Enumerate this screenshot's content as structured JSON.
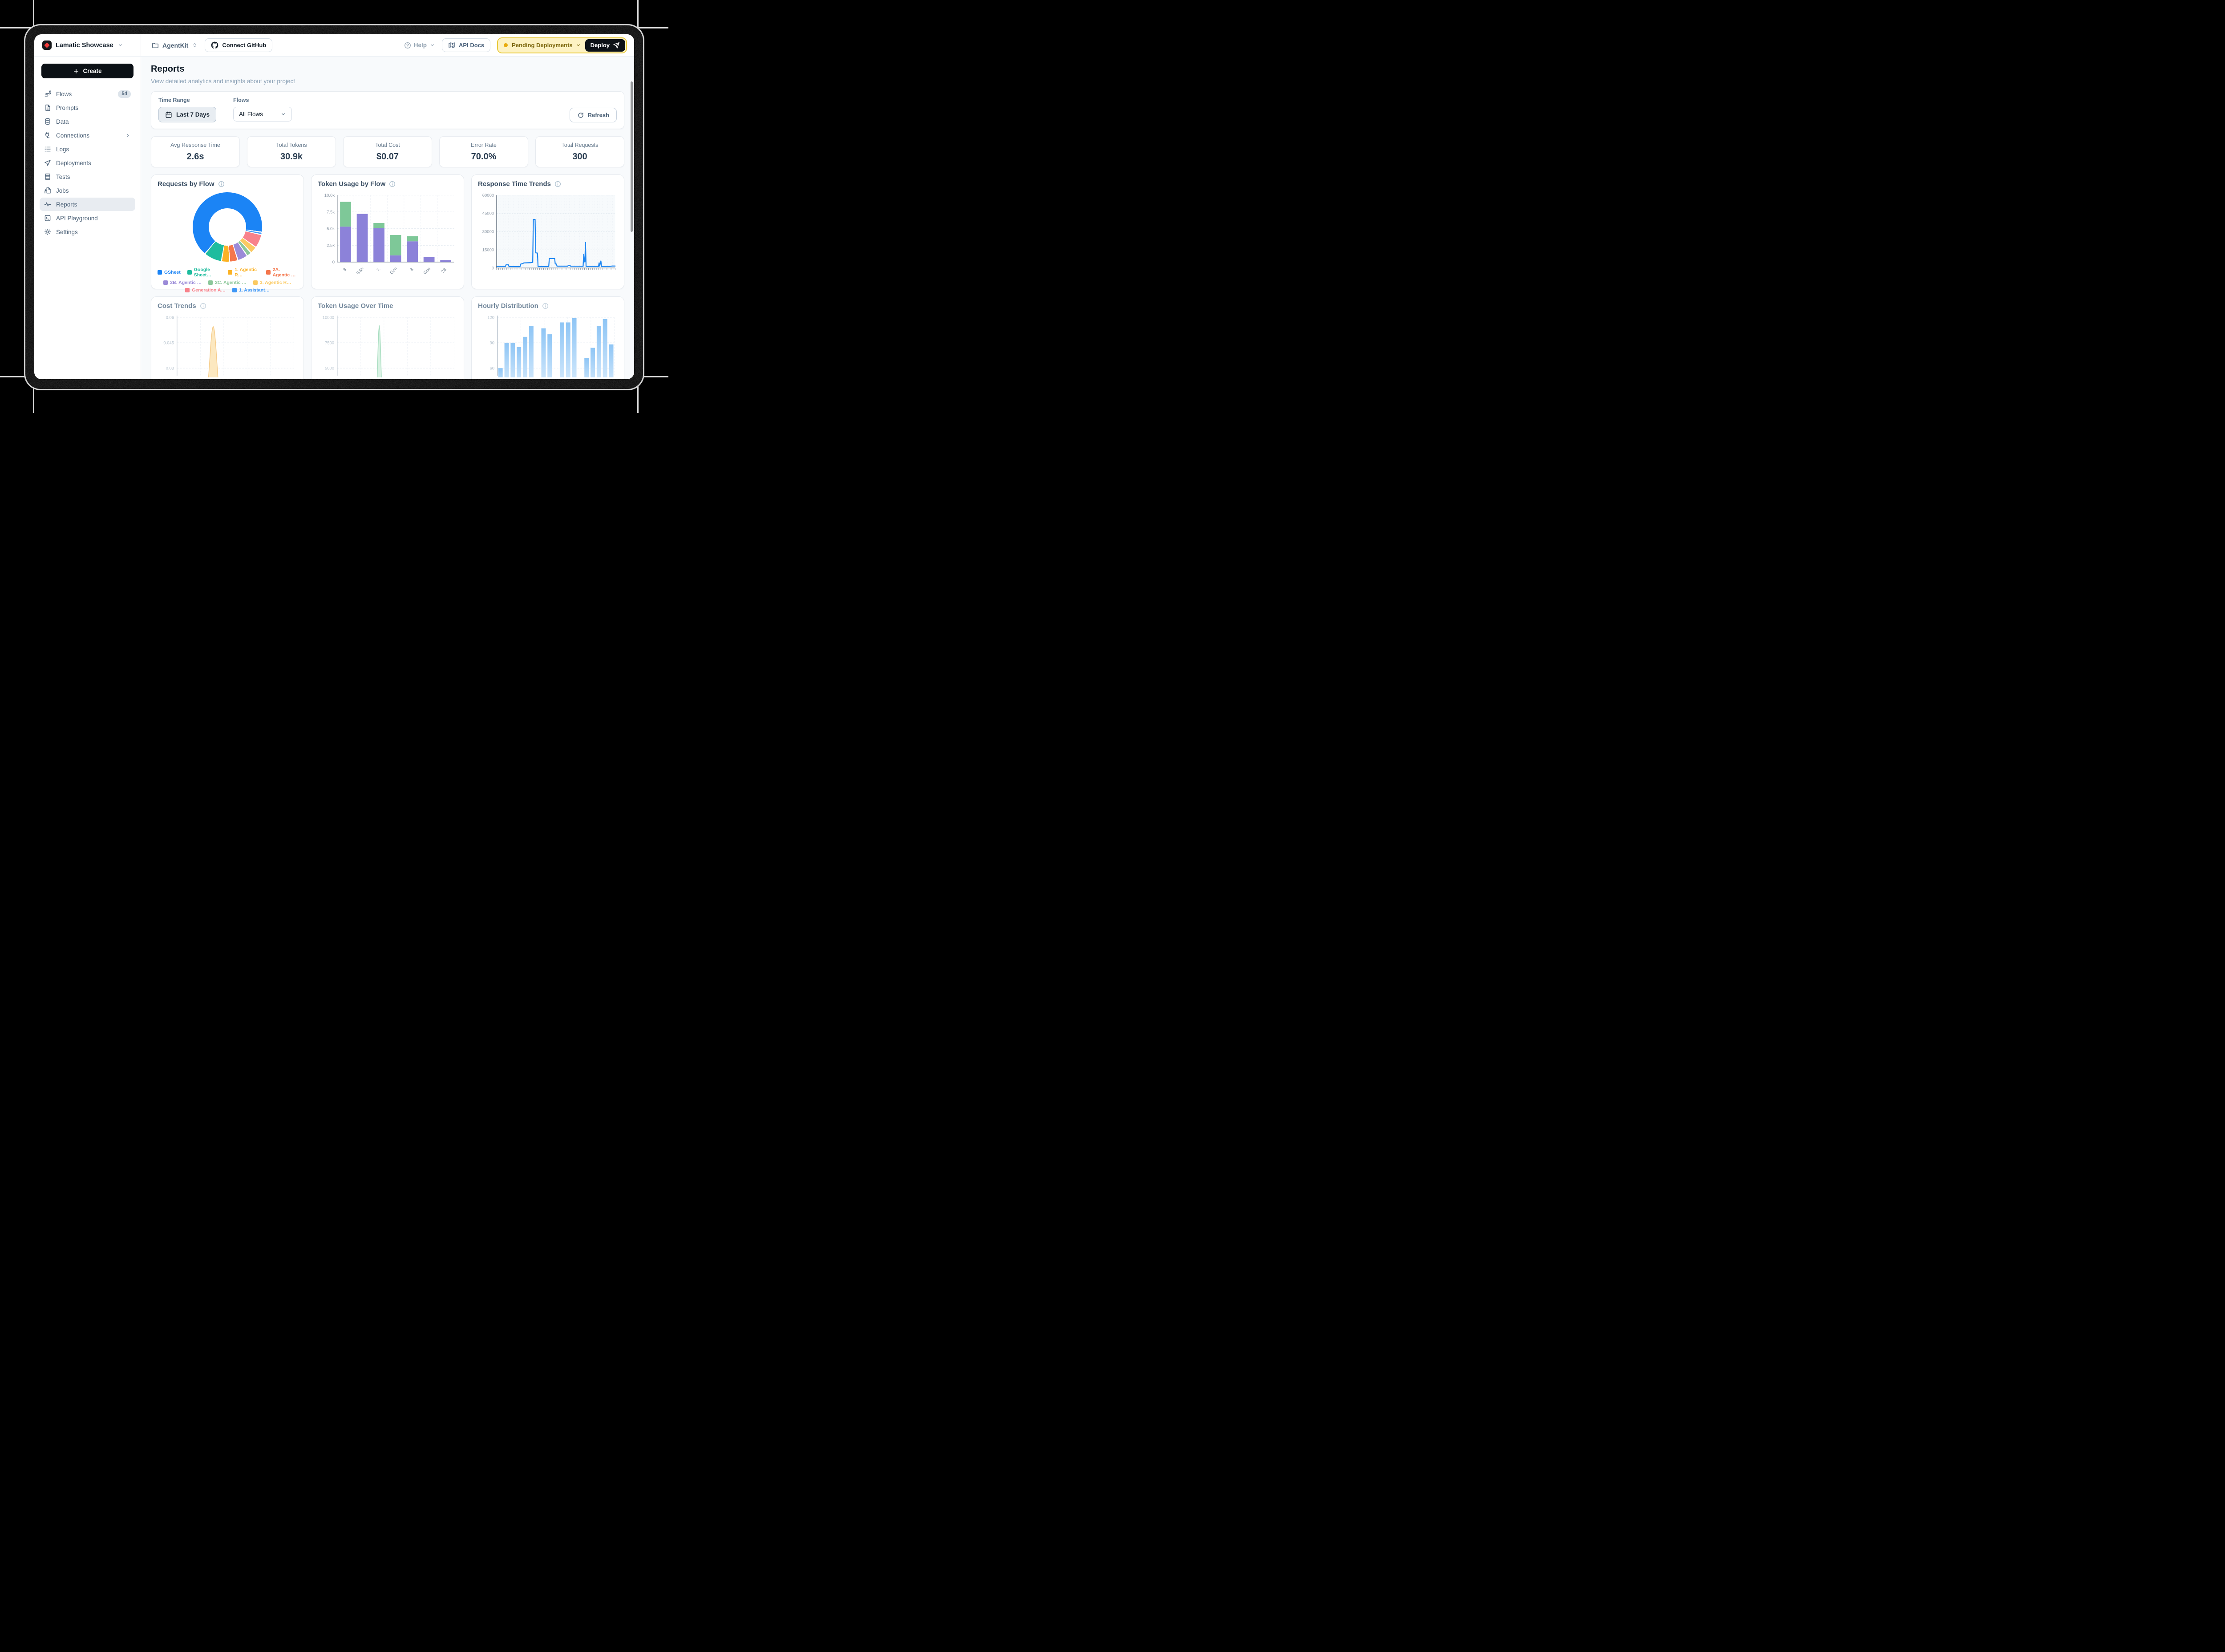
{
  "header": {
    "project_name": "Lamatic Showcase",
    "workspace": "AgentKit",
    "connect_github": "Connect GitHub",
    "help": "Help",
    "api_docs": "API Docs",
    "pending": "Pending Deployments",
    "deploy": "Deploy",
    "pill_bg": "#fdf2c3",
    "pill_border": "#e9ca3d",
    "pill_dot": "#e8ab0c"
  },
  "sidebar": {
    "create": "Create",
    "items": [
      {
        "label": "Flows",
        "icon": "flows",
        "badge": "54"
      },
      {
        "label": "Prompts",
        "icon": "prompts"
      },
      {
        "label": "Data",
        "icon": "data"
      },
      {
        "label": "Connections",
        "icon": "connections",
        "chevron": true
      },
      {
        "label": "Logs",
        "icon": "logs"
      },
      {
        "label": "Deployments",
        "icon": "deployments"
      },
      {
        "label": "Tests",
        "icon": "tests"
      },
      {
        "label": "Jobs",
        "icon": "jobs"
      },
      {
        "label": "Reports",
        "icon": "reports",
        "active": true
      },
      {
        "label": "API Playground",
        "icon": "playground"
      },
      {
        "label": "Settings",
        "icon": "settings"
      }
    ]
  },
  "page": {
    "title": "Reports",
    "subtitle": "View detailed analytics and insights about your project"
  },
  "filters": {
    "time_range_label": "Time Range",
    "time_range_value": "Last 7 Days",
    "flows_label": "Flows",
    "flows_value": "All Flows",
    "refresh": "Refresh"
  },
  "stats": {
    "cards": [
      {
        "label": "Avg Response Time",
        "value": "2.6s"
      },
      {
        "label": "Total Tokens",
        "value": "30.9k"
      },
      {
        "label": "Total Cost",
        "value": "$0.07"
      },
      {
        "label": "Error Rate",
        "value": "70.0%"
      },
      {
        "label": "Total Requests",
        "value": "300"
      }
    ]
  },
  "chart_data": [
    {
      "type": "pie",
      "title": "Requests by Flow",
      "has_info": true,
      "start_angle": 219,
      "hole_ratio": 0.54,
      "slices": [
        {
          "label": "GSheet",
          "color": "#1b84f5",
          "value": 65.8
        },
        {
          "label": "Google Sheet…",
          "color": "#1ebc9e",
          "value": 7.8
        },
        {
          "label": "1. Agentic R…",
          "color": "#fbb224",
          "value": 3.3
        },
        {
          "label": "2A. Agentic …",
          "color": "#f4764c",
          "value": 3.3
        },
        {
          "label": "2B. Agentic …",
          "color": "#9b8bd8",
          "value": 4.2
        },
        {
          "label": "2C. Agentic …",
          "color": "#8cc79a",
          "value": 1.7
        },
        {
          "label": "3. Agentic R…",
          "color": "#fbca63",
          "value": 2.8
        },
        {
          "label": "Generation A…",
          "color": "#f8828b",
          "value": 5.8
        },
        {
          "label": "1. Assistant…",
          "color": "#3e97f6",
          "value": 0.6
        }
      ],
      "draw_order": [
        0,
        8,
        7,
        6,
        5,
        4,
        3,
        2,
        1
      ],
      "legend_rows": [
        [
          0,
          1,
          2,
          3
        ],
        [
          4,
          5,
          6
        ],
        [
          7,
          8
        ]
      ]
    },
    {
      "type": "bar",
      "title": "Token Usage by Flow",
      "has_info": true,
      "categories": [
        "3.",
        "GSh",
        "1.",
        "Gen",
        "3.",
        "Goo",
        "2B."
      ],
      "series": [
        {
          "name": "base",
          "color": "#8c82d9",
          "values": [
            5300,
            7200,
            5050,
            1000,
            3100,
            750,
            300
          ]
        },
        {
          "name": "top",
          "color": "#7ec898",
          "values": [
            3700,
            0,
            800,
            3050,
            750,
            0,
            0
          ]
        }
      ],
      "ylim": [
        0,
        10000
      ],
      "y_ticks": [
        "0",
        "2.5k",
        "5.0k",
        "7.5k",
        "10.0k"
      ]
    },
    {
      "type": "line",
      "title": "Response Time Trends",
      "has_info": true,
      "color": "#1f87f2",
      "ylim": [
        0,
        60000
      ],
      "y_ticks": [
        "0",
        "15000",
        "30000",
        "45000",
        "60000"
      ],
      "points": [
        [
          0,
          1300
        ],
        [
          7.5,
          1300
        ],
        [
          8,
          2600
        ],
        [
          10,
          2600
        ],
        [
          10.5,
          1200
        ],
        [
          19.5,
          1100
        ],
        [
          20,
          1500
        ],
        [
          20.5,
          3300
        ],
        [
          22,
          3600
        ],
        [
          23,
          4200
        ],
        [
          29,
          4400
        ],
        [
          30.5,
          4600
        ],
        [
          31,
          40000
        ],
        [
          32.5,
          40000
        ],
        [
          33,
          12500
        ],
        [
          34.5,
          12300
        ],
        [
          35,
          1200
        ],
        [
          44,
          1200
        ],
        [
          44.5,
          7800
        ],
        [
          49,
          7800
        ],
        [
          49.5,
          3300
        ],
        [
          50.5,
          3200
        ],
        [
          51,
          1500
        ],
        [
          60,
          1500
        ],
        [
          60.5,
          2100
        ],
        [
          62,
          2000
        ],
        [
          62.5,
          1500
        ],
        [
          73,
          1400
        ],
        [
          73.5,
          11200
        ],
        [
          74,
          5200
        ],
        [
          74.5,
          5000
        ],
        [
          75,
          21000
        ],
        [
          75.5,
          1300
        ],
        [
          86,
          1300
        ],
        [
          86.5,
          4300
        ],
        [
          87,
          1600
        ],
        [
          88,
          5800
        ],
        [
          88.5,
          1300
        ],
        [
          95.5,
          1300
        ],
        [
          97.5,
          1600
        ],
        [
          100,
          1600
        ]
      ]
    },
    {
      "type": "area",
      "title": "Cost Trends",
      "has_info": true,
      "y_ticks": [
        0.06,
        0.045,
        0.03
      ],
      "peak_x": 31,
      "peak_value": 0.0545,
      "sigma": 4.5,
      "fill": "#fce8c0",
      "line": "#f6cd8c"
    },
    {
      "type": "area",
      "title": "Token Usage Over Time",
      "has_info": false,
      "y_ticks": [
        10000,
        7500,
        5000
      ],
      "peak_x": 36,
      "peak_value": 9200,
      "sigma": 2,
      "fill": "#d9f2e3",
      "line": "#a8ddc0"
    },
    {
      "type": "bar",
      "title": "Hourly Distribution",
      "has_info": true,
      "y_ticks": [
        120,
        90,
        60
      ],
      "values": [
        60,
        90,
        90,
        85,
        97,
        110,
        null,
        107,
        100,
        null,
        114,
        114,
        119,
        null,
        72,
        84,
        110,
        118,
        88
      ],
      "color_top": "#8ec5f5",
      "color_bottom": "#d7ebfc"
    }
  ]
}
